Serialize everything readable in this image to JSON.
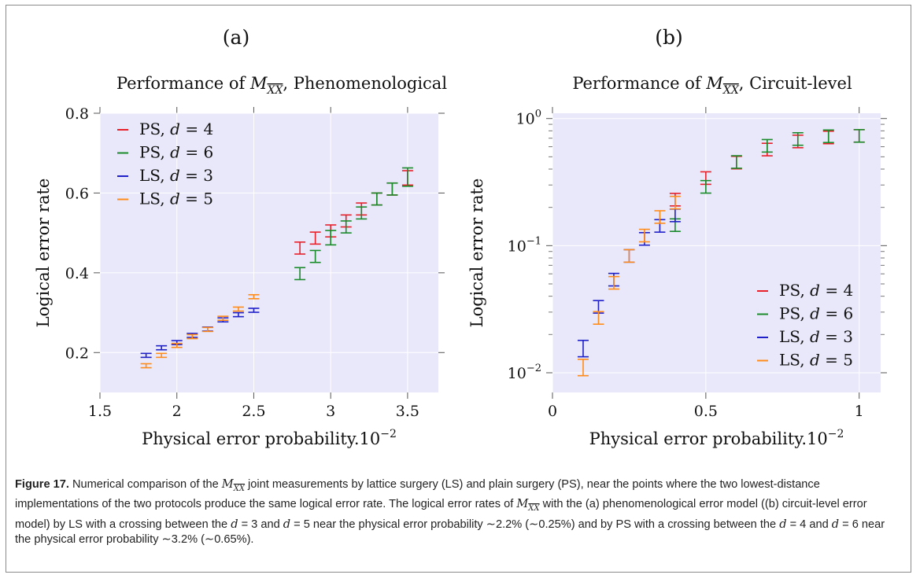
{
  "chart_data": [
    {
      "type": "scatter",
      "panel_label": "(a)",
      "title": "Performance of M_XX, Phenomenological",
      "title_prefix": "Performance of ",
      "title_suffix": ", Phenomenological",
      "xlabel": "Physical error probability.",
      "xlabel_scale": "10^-2",
      "ylabel": "Logical error rate",
      "xlim": [
        1.5,
        3.7
      ],
      "ylim": [
        0.1,
        0.8
      ],
      "yscale": "linear",
      "xticks": [
        1.5,
        2,
        2.5,
        3,
        3.5
      ],
      "xtick_labels": [
        "1.5",
        "2",
        "2.5",
        "3",
        "3.5"
      ],
      "yticks": [
        0.2,
        0.4,
        0.6,
        0.8
      ],
      "ytick_labels": [
        "0.2",
        "0.4",
        "0.6",
        "0.8"
      ],
      "grid": true,
      "legend_position": "top-left",
      "series": [
        {
          "name": "PS, d = 4",
          "color": "#e8202a",
          "x": [
            2.8,
            2.9,
            3.0,
            3.1,
            3.2,
            3.3,
            3.4,
            3.5
          ],
          "y": [
            0.462,
            0.487,
            0.505,
            0.53,
            0.56,
            0.585,
            0.61,
            0.638
          ],
          "err": [
            0.015,
            0.015,
            0.015,
            0.015,
            0.015,
            0.015,
            0.015,
            0.018
          ]
        },
        {
          "name": "PS, d = 6",
          "color": "#1a8a2a",
          "x": [
            2.8,
            2.9,
            3.0,
            3.1,
            3.2,
            3.3,
            3.4,
            3.5
          ],
          "y": [
            0.398,
            0.441,
            0.488,
            0.515,
            0.55,
            0.585,
            0.61,
            0.64
          ],
          "err": [
            0.015,
            0.015,
            0.018,
            0.015,
            0.015,
            0.015,
            0.015,
            0.023
          ]
        },
        {
          "name": "LS, d = 3",
          "color": "#2020c8",
          "x": [
            1.8,
            1.9,
            2.0,
            2.1,
            2.2,
            2.3,
            2.4,
            2.5
          ],
          "y": [
            0.193,
            0.212,
            0.225,
            0.243,
            0.259,
            0.282,
            0.295,
            0.306
          ],
          "err": [
            0.005,
            0.005,
            0.005,
            0.005,
            0.005,
            0.005,
            0.005,
            0.005
          ]
        },
        {
          "name": "LS, d = 5",
          "color": "#ff8c1a",
          "x": [
            1.8,
            1.9,
            2.0,
            2.1,
            2.2,
            2.3,
            2.4,
            2.5
          ],
          "y": [
            0.167,
            0.193,
            0.218,
            0.24,
            0.258,
            0.286,
            0.309,
            0.34
          ],
          "err": [
            0.005,
            0.005,
            0.005,
            0.005,
            0.005,
            0.005,
            0.005,
            0.005
          ]
        }
      ]
    },
    {
      "type": "scatter",
      "panel_label": "(b)",
      "title": "Performance of M_XX, Circuit-level",
      "title_prefix": "Performance of ",
      "title_suffix": ", Circuit-level",
      "xlabel": "Physical error probability.",
      "xlabel_scale": "10^-2",
      "ylabel": "Logical error rate",
      "xlim": [
        0,
        1.07
      ],
      "ylim": [
        0.007,
        1.1
      ],
      "yscale": "log",
      "xticks": [
        0,
        0.5,
        1
      ],
      "xtick_labels": [
        "0",
        "0.5",
        "1"
      ],
      "yticks": [
        0.01,
        0.1,
        1
      ],
      "ytick_labels": [
        "10^-2",
        "10^-1",
        "10^0"
      ],
      "grid": true,
      "legend_position": "bottom-right",
      "series": [
        {
          "name": "PS, d = 4",
          "color": "#e8202a",
          "x": [
            0.4,
            0.5,
            0.6,
            0.7,
            0.8,
            0.9,
            1.0
          ],
          "y": [
            0.23,
            0.34,
            0.45,
            0.57,
            0.66,
            0.71,
            0.73
          ]
        },
        {
          "name": "PS, d = 6",
          "color": "#1a8a2a",
          "x": [
            0.4,
            0.5,
            0.6,
            0.7,
            0.8,
            0.9,
            1.0
          ],
          "y": [
            0.145,
            0.29,
            0.455,
            0.61,
            0.69,
            0.725,
            0.73
          ]
        },
        {
          "name": "LS, d = 3",
          "color": "#2020c8",
          "x": [
            0.1,
            0.15,
            0.2,
            0.25,
            0.3,
            0.35,
            0.4
          ],
          "y": [
            0.0155,
            0.033,
            0.054,
            0.083,
            0.113,
            0.143,
            0.173
          ]
        },
        {
          "name": "LS, d = 5",
          "color": "#ff8c1a",
          "x": [
            0.1,
            0.15,
            0.2,
            0.25,
            0.3,
            0.35,
            0.4
          ],
          "y": [
            0.011,
            0.027,
            0.051,
            0.083,
            0.12,
            0.168,
            0.218
          ]
        }
      ]
    }
  ],
  "caption": {
    "label": "Figure 17.",
    "text": " Numerical comparison of the M_XX joint measurements by lattice surgery (LS) and plain surgery (PS), near the points where the two lowest-distance implementations of the two protocols produce the same logical error rate. The logical error rates of M_XX with the (a) phenomenological error model ((b) circuit-level error model) by LS with a crossing between the d = 3 and d = 5 near the physical error probability ∼2.2% (∼0.25%) and by PS with a crossing between the d = 4 and d = 6 near the physical error probability ∼3.2% (∼0.65%)."
  },
  "colors": {
    "plot_background": "#e8e8fa",
    "grid": "#ffffff",
    "frame": "#8a8a8a"
  }
}
